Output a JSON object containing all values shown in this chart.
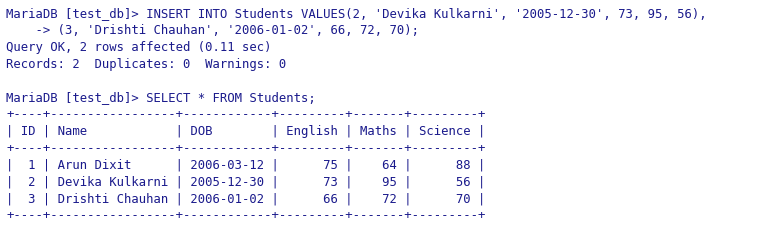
{
  "bg_color": "#ffffff",
  "text_color": "#1a1a8c",
  "lines": [
    "MariaDB [test_db]> INSERT INTO Students VALUES(2, 'Devika Kulkarni', '2005-12-30', 73, 95, 56),",
    "    -> (3, 'Drishti Chauhan', '2006-01-02', 66, 72, 70);",
    "Query OK, 2 rows affected (0.11 sec)",
    "Records: 2  Duplicates: 0  Warnings: 0",
    "",
    "MariaDB [test_db]> SELECT * FROM Students;",
    "+----+-----------------+------------+---------+-------+---------+",
    "| ID | Name            | DOB        | English | Maths | Science |",
    "+----+-----------------+------------+---------+-------+---------+",
    "|  1 | Arun Dixit      | 2006-03-12 |      75 |    64 |      88 |",
    "|  2 | Devika Kulkarni | 2005-12-30 |      73 |    95 |      56 |",
    "|  3 | Drishti Chauhan | 2006-01-02 |      66 |    72 |      70 |",
    "+----+-----------------+------------+---------+-------+---------+"
  ],
  "font_size": 8.8,
  "font_family": "monospace",
  "fig_width": 7.68,
  "fig_height": 2.31,
  "dpi": 100
}
